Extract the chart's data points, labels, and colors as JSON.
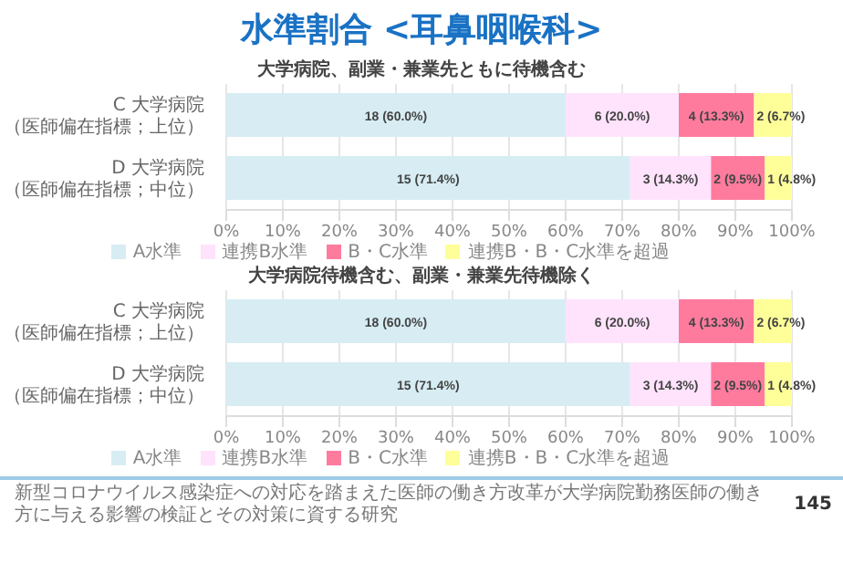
{
  "chart_data": [
    {
      "type": "bar",
      "title": "水準割合 <耳鼻咽喉科>",
      "subtitle": "大学病院、副業・兼業先ともに待機含む",
      "orientation": "horizontal",
      "stacked": true,
      "categories": [
        "C 大学病院（医師偏在指標；上位）",
        "D 大学病院（医師偏在指標；中位）"
      ],
      "series": [
        {
          "name": "A水準",
          "color": "#d7edf3",
          "values": [
            60.0,
            71.4
          ],
          "value_labels": [
            "18 (60.0%)",
            "15 (71.4%)"
          ]
        },
        {
          "name": "連携B水準",
          "color": "#ffe3fc",
          "values": [
            20.0,
            14.3
          ],
          "value_labels": [
            "6 (20.0%)",
            "3 (14.3%)"
          ]
        },
        {
          "name": "B・C水準",
          "color": "#ff7b9e",
          "values": [
            13.3,
            9.5
          ],
          "value_labels": [
            "4 (13.3%)",
            "2 (9.5%)"
          ]
        },
        {
          "name": "連携B・B・C水準を超過",
          "color": "#ffff99",
          "values": [
            6.7,
            4.8
          ],
          "value_labels": [
            "2 (6.7%)",
            "1 (4.8%)"
          ]
        }
      ],
      "xlim": [
        0,
        100
      ],
      "xticks": [
        {
          "value": 0,
          "label": "0%"
        },
        {
          "value": 10,
          "label": "10%"
        },
        {
          "value": 20,
          "label": "20%"
        },
        {
          "value": 30,
          "label": "30%"
        },
        {
          "value": 40,
          "label": "40%"
        },
        {
          "value": 50,
          "label": "50%"
        },
        {
          "value": 60,
          "label": "60%"
        },
        {
          "value": 70,
          "label": "70%"
        },
        {
          "value": 80,
          "label": "80%"
        },
        {
          "value": 90,
          "label": "90%"
        },
        {
          "value": 100,
          "label": "100%"
        }
      ],
      "grid": "x",
      "legend": "bottom"
    },
    {
      "type": "bar",
      "title": "大学病院待機含む、副業・兼業先待機除く",
      "orientation": "horizontal",
      "stacked": true,
      "categories": [
        "C 大学病院（医師偏在指標；上位）",
        "D 大学病院（医師偏在指標；中位）"
      ],
      "series": [
        {
          "name": "A水準",
          "color": "#d7edf3",
          "values": [
            60.0,
            71.4
          ],
          "value_labels": [
            "18 (60.0%)",
            "15 (71.4%)"
          ]
        },
        {
          "name": "連携B水準",
          "color": "#ffe3fc",
          "values": [
            20.0,
            14.3
          ],
          "value_labels": [
            "6 (20.0%)",
            "3 (14.3%)"
          ]
        },
        {
          "name": "B・C水準",
          "color": "#ff7b9e",
          "values": [
            13.3,
            9.5
          ],
          "value_labels": [
            "4 (13.3%)",
            "2 (9.5%)"
          ]
        },
        {
          "name": "連携B・B・C水準を超過",
          "color": "#ffff99",
          "values": [
            6.7,
            4.8
          ],
          "value_labels": [
            "2 (6.7%)",
            "1 (4.8%)"
          ]
        }
      ],
      "xlim": [
        0,
        100
      ],
      "xticks": [
        {
          "value": 0,
          "label": "0%"
        },
        {
          "value": 10,
          "label": "10%"
        },
        {
          "value": 20,
          "label": "20%"
        },
        {
          "value": 30,
          "label": "30%"
        },
        {
          "value": 40,
          "label": "40%"
        },
        {
          "value": 50,
          "label": "50%"
        },
        {
          "value": 60,
          "label": "60%"
        },
        {
          "value": 70,
          "label": "70%"
        },
        {
          "value": 80,
          "label": "80%"
        },
        {
          "value": 90,
          "label": "90%"
        },
        {
          "value": 100,
          "label": "100%"
        }
      ],
      "grid": "x",
      "legend": "bottom",
      "annotations": [
        "新型コロナウイルス感染症への対応を踏まえた医師の働き方改革が大学病院勤務医師の働き方に与える影響の検証とその対策に資する研究",
        "145"
      ]
    }
  ]
}
